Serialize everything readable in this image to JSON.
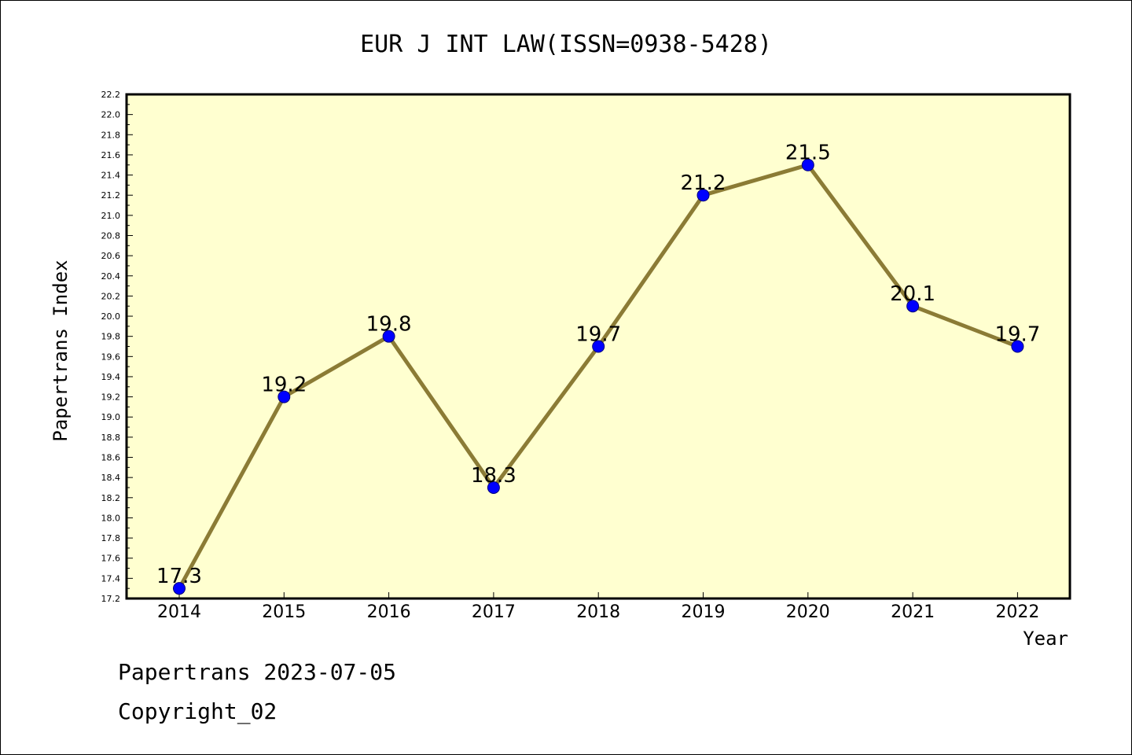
{
  "chart_data": {
    "type": "line",
    "title": "EUR J INT LAW(ISSN=0938-5428)",
    "xlabel": "Year",
    "ylabel": "Papertrans Index",
    "x": [
      "2014",
      "2015",
      "2016",
      "2017",
      "2018",
      "2019",
      "2020",
      "2021",
      "2022"
    ],
    "values": [
      17.3,
      19.2,
      19.8,
      18.3,
      19.7,
      21.2,
      21.5,
      20.1,
      19.7
    ],
    "data_labels": [
      "17.3",
      "19.2",
      "19.8",
      "18.3",
      "19.7",
      "21.2",
      "21.5",
      "20.1",
      "19.7"
    ],
    "ylim": [
      17.2,
      22.2
    ],
    "yticks": [
      "17.2",
      "17.4",
      "17.6",
      "17.8",
      "18.0",
      "18.2",
      "18.4",
      "18.6",
      "18.8",
      "19.0",
      "19.2",
      "19.4",
      "19.6",
      "19.8",
      "20.0",
      "20.2",
      "20.4",
      "20.6",
      "20.8",
      "21.0",
      "21.2",
      "21.4",
      "21.6",
      "21.8",
      "22.0",
      "22.2"
    ],
    "grid": false,
    "colors": {
      "plot_bg": "#ffffd0",
      "line": "#8b7b35",
      "marker": "#0000ff"
    }
  },
  "footer": {
    "line1": "Papertrans 2023-07-05",
    "line2": "Copyright_02"
  }
}
